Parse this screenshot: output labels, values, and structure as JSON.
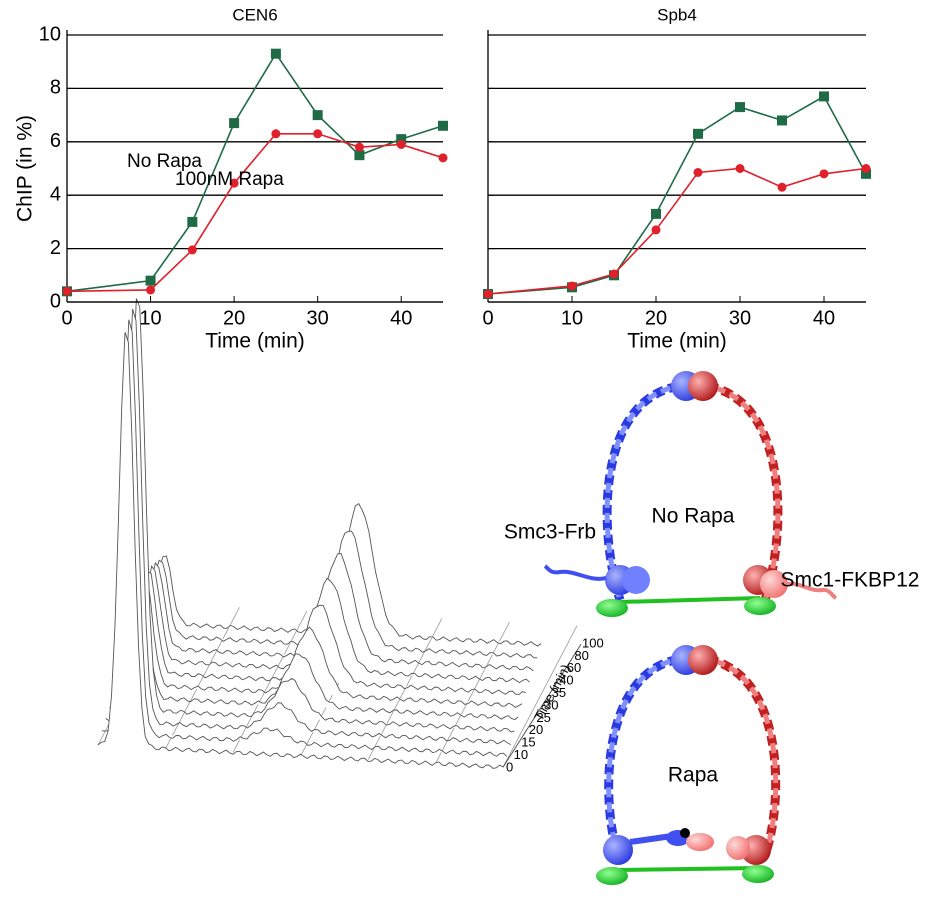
{
  "chart_data": [
    {
      "type": "line",
      "title": "CEN6",
      "xlabel": "Time (min)",
      "ylabel": "ChIP (in %)",
      "x": [
        0,
        10,
        15,
        20,
        25,
        30,
        35,
        40,
        45
      ],
      "series": [
        {
          "name": "No Rapa",
          "color": "#1e6b45",
          "marker": "square",
          "values": [
            0.4,
            0.8,
            3.0,
            6.7,
            9.3,
            7.0,
            5.5,
            6.1,
            6.6
          ]
        },
        {
          "name": "100nM Rapa",
          "color": "#e0202a",
          "marker": "circle",
          "values": [
            0.4,
            0.45,
            1.95,
            4.45,
            6.3,
            6.3,
            5.8,
            5.9,
            5.4
          ]
        }
      ],
      "xlim": [
        0,
        45
      ],
      "xticks": [
        0,
        10,
        20,
        30,
        40
      ],
      "ylim": [
        0,
        10
      ],
      "yticks": [
        0,
        2,
        4,
        6,
        8,
        10
      ],
      "grid": true,
      "ytick_labels": true
    },
    {
      "type": "line",
      "title": "Spb4",
      "xlabel": "Time (min)",
      "x": [
        0,
        10,
        15,
        20,
        25,
        30,
        35,
        40,
        45
      ],
      "series": [
        {
          "color": "#1e6b45",
          "marker": "square",
          "values": [
            0.3,
            0.55,
            1.0,
            3.3,
            6.3,
            7.3,
            6.8,
            7.7,
            4.8
          ]
        },
        {
          "color": "#e0202a",
          "marker": "circle",
          "values": [
            0.3,
            0.6,
            1.05,
            2.7,
            4.85,
            5.0,
            4.3,
            4.8,
            5.0
          ]
        }
      ],
      "xlim": [
        0,
        45
      ],
      "xticks": [
        0,
        10,
        20,
        30,
        40
      ],
      "ylim": [
        0,
        10
      ],
      "yticks": [
        0,
        2,
        4,
        6,
        8,
        10
      ],
      "grid": true,
      "ytick_labels": false
    }
  ],
  "histogram3d": {
    "axis_label": "Time (min)",
    "ticks": [
      "0",
      "10",
      "15",
      "20",
      "25",
      "30",
      "35",
      "40",
      "60",
      "80",
      "100"
    ]
  },
  "diagram": {
    "top_label": "No Rapa",
    "left_label": "Smc3-Frb",
    "right_label": "Smc1-FKBP12",
    "bottom_label": "Rapa"
  }
}
